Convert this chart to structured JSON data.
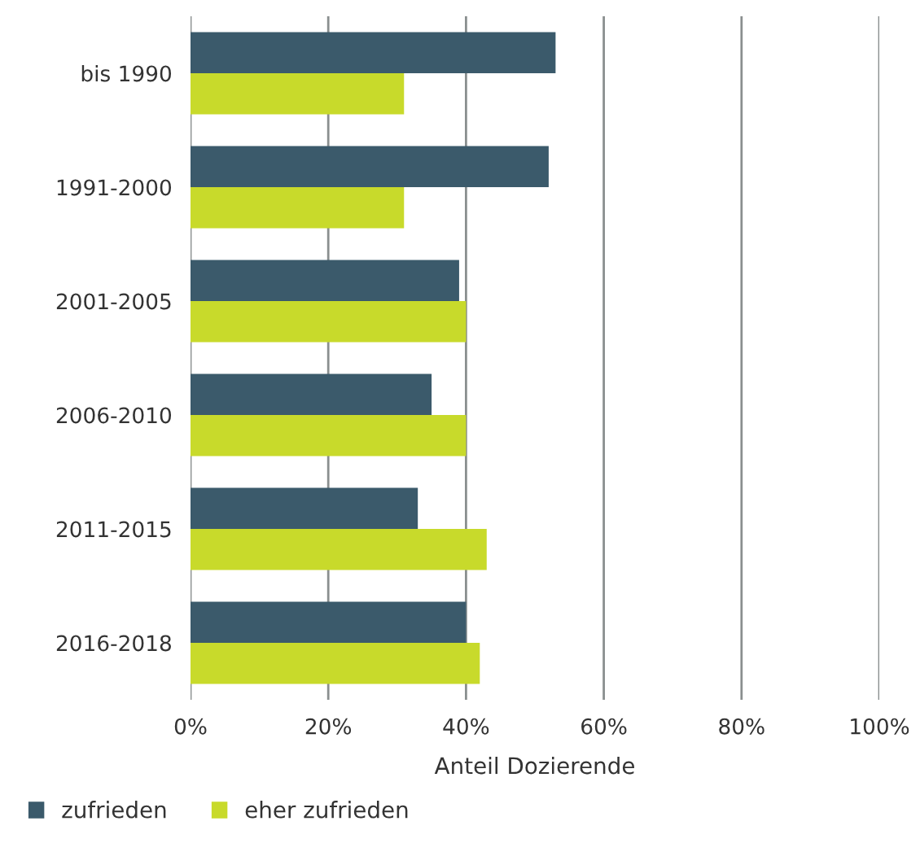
{
  "chart_data": {
    "type": "bar",
    "orientation": "horizontal",
    "xlabel": "Anteil Dozierende",
    "categories": [
      "bis 1990",
      "1991-2000",
      "2001-2005",
      "2006-2010",
      "2011-2015",
      "2016-2018"
    ],
    "series": [
      {
        "name": "zufrieden",
        "color": "#3b5a6b",
        "values": [
          53,
          52,
          39,
          35,
          33,
          40
        ]
      },
      {
        "name": "eher zufrieden",
        "color": "#c8da2b",
        "values": [
          31,
          31,
          40,
          40,
          43,
          42
        ]
      }
    ],
    "xlim": [
      0,
      100
    ],
    "xticks": [
      {
        "value": 0,
        "label": "0%"
      },
      {
        "value": 20,
        "label": "20%"
      },
      {
        "value": 40,
        "label": "40%"
      },
      {
        "value": 60,
        "label": "60%"
      },
      {
        "value": 80,
        "label": "80%"
      },
      {
        "value": 100,
        "label": "100%"
      }
    ],
    "grid": "x",
    "legend": "bottom left"
  }
}
